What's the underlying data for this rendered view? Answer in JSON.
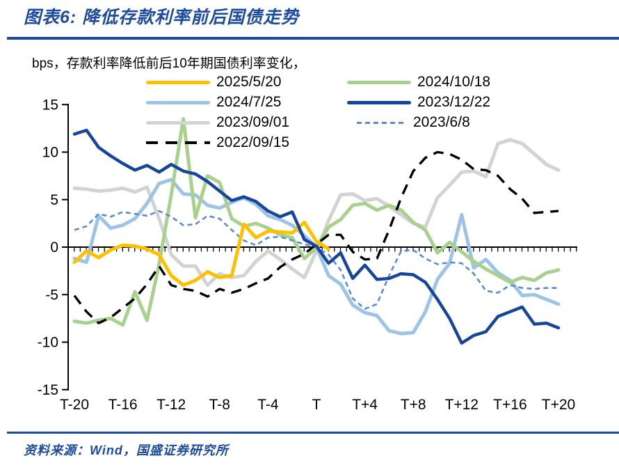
{
  "report": {
    "title": "图表6:  降低存款利率前后国债走势",
    "source": "资料来源：Wind，国盛证券研究所"
  },
  "accent": {
    "navy": "#1B4A9E",
    "axis": "#000000"
  },
  "chart_data": {
    "type": "line",
    "title": "bps，存款利率降低前后10年期国债利率变化，",
    "x_categories": [
      "T-20",
      "T-19",
      "T-18",
      "T-17",
      "T-16",
      "T-15",
      "T-14",
      "T-13",
      "T-12",
      "T-11",
      "T-10",
      "T-9",
      "T-8",
      "T-7",
      "T-6",
      "T-5",
      "T-4",
      "T-3",
      "T-2",
      "T-1",
      "T",
      "T+1",
      "T+2",
      "T+3",
      "T+4",
      "T+5",
      "T+6",
      "T+7",
      "T+8",
      "T+9",
      "T+10",
      "T+11",
      "T+12",
      "T+13",
      "T+14",
      "T+15",
      "T+16",
      "T+17",
      "T+18",
      "T+19",
      "T+20"
    ],
    "x_tick_labels": [
      "T-20",
      "T-16",
      "T-12",
      "T-8",
      "T-4",
      "T",
      "T+4",
      "T+8",
      "T+12",
      "T+16",
      "T+20"
    ],
    "y_ticks": [
      15,
      10,
      5,
      0,
      -5,
      -10,
      -15
    ],
    "ylim": [
      -15,
      15
    ],
    "xlabel": "",
    "ylabel": "bps",
    "grid": false,
    "legend_position": "top-center-two-columns",
    "series": [
      {
        "name": "2025/5/20",
        "color": "#FFC000",
        "style": "solid",
        "values": [
          -1.6,
          -0.4,
          -1.1,
          -0.3,
          0.2,
          0.1,
          -0.2,
          -0.8,
          -3.0,
          -4.0,
          -3.5,
          -2.6,
          -3.2,
          -3.0,
          2.4,
          1.0,
          1.7,
          1.6,
          1.5,
          2.6,
          0.6,
          -0.2,
          null,
          null,
          null,
          null,
          null,
          null,
          null,
          null,
          null,
          null,
          null,
          null,
          null,
          null,
          null,
          null,
          null,
          null,
          null
        ]
      },
      {
        "name": "2024/10/18",
        "color": "#A9D18E",
        "style": "solid",
        "values": [
          -7.8,
          -8.0,
          -7.7,
          -7.5,
          -8.2,
          -4.7,
          -7.7,
          -1.8,
          5.5,
          13.5,
          3.1,
          7.5,
          6.8,
          3.0,
          2.2,
          2.5,
          2.0,
          1.3,
          1.0,
          -1.2,
          -0.1,
          2.1,
          2.9,
          4.4,
          4.6,
          3.9,
          4.4,
          3.9,
          2.6,
          1.8,
          -0.6,
          0.5,
          -0.5,
          -1.5,
          -2.3,
          -3.0,
          -3.7,
          -3.2,
          -3.5,
          -2.7,
          -2.4
        ]
      },
      {
        "name": "2024/7/25",
        "color": "#9DC3E6",
        "style": "solid",
        "values": [
          -1.2,
          -1.6,
          3.3,
          2.0,
          2.3,
          3.0,
          4.6,
          6.7,
          7.1,
          5.6,
          5.5,
          4.4,
          4.1,
          4.7,
          5.2,
          4.5,
          3.3,
          2.9,
          2.3,
          1.2,
          0.0,
          -3.0,
          -3.9,
          -6.1,
          -6.9,
          -7.2,
          -8.8,
          -9.1,
          -9.0,
          -6.8,
          -3.4,
          -1.7,
          3.4,
          -2.2,
          -1.3,
          -2.7,
          -3.5,
          -5.1,
          -5.0,
          -5.5,
          -6.0
        ]
      },
      {
        "name": "2023/12/22",
        "color": "#16459C",
        "style": "solid",
        "values": [
          11.9,
          12.3,
          10.5,
          9.6,
          8.8,
          8.1,
          8.6,
          7.9,
          8.7,
          8.0,
          7.7,
          6.9,
          5.9,
          4.9,
          5.3,
          4.8,
          3.8,
          3.2,
          3.7,
          0.8,
          0.1,
          -1.7,
          -0.6,
          -3.3,
          -1.9,
          -3.4,
          -3.3,
          -2.8,
          -2.9,
          -3.7,
          -5.5,
          -7.5,
          -10.1,
          -9.3,
          -8.9,
          -7.3,
          -6.8,
          -6.3,
          -8.1,
          -8.0,
          -8.5
        ]
      },
      {
        "name": "2023/09/01",
        "color": "#D3D3D3",
        "style": "solid",
        "values": [
          6.2,
          6.1,
          5.9,
          6.0,
          6.2,
          5.8,
          6.3,
          3.0,
          -0.8,
          -2.0,
          -2.0,
          -4.0,
          -2.8,
          -3.2,
          -3.0,
          -1.5,
          -0.4,
          -1.3,
          -2.3,
          -3.2,
          -0.4,
          2.8,
          5.5,
          5.6,
          4.9,
          5.1,
          4.3,
          3.4,
          2.5,
          2.1,
          5.2,
          6.5,
          7.9,
          8.0,
          7.4,
          10.9,
          11.3,
          10.9,
          9.8,
          8.7,
          8.1
        ]
      },
      {
        "name": "2023/6/8",
        "color": "#5B8BD0",
        "style": "dashed",
        "values": [
          1.8,
          2.2,
          3.5,
          3.2,
          3.7,
          3.5,
          3.3,
          3.8,
          3.2,
          2.3,
          2.4,
          3.3,
          3.0,
          1.8,
          0.7,
          0.2,
          1.0,
          1.1,
          0.7,
          0.3,
          0.0,
          -0.8,
          -2.4,
          -5.4,
          -6.5,
          -6.0,
          -3.0,
          -0.4,
          -0.3,
          -1.2,
          -1.8,
          -1.6,
          -1.7,
          -2.8,
          -4.6,
          -4.8,
          -4.0,
          -4.3,
          -4.4,
          -4.3,
          -4.3
        ]
      },
      {
        "name": "2022/09/15",
        "color": "#000000",
        "style": "long-dash",
        "values": [
          -5.1,
          -6.8,
          -8.0,
          -7.4,
          -6.4,
          -5.4,
          -3.9,
          -2.0,
          -4.0,
          -4.4,
          -4.6,
          -5.2,
          -4.4,
          -4.8,
          -4.4,
          -3.8,
          -3.3,
          -2.1,
          -1.3,
          -0.7,
          0.3,
          1.3,
          1.3,
          -0.5,
          -1.3,
          -1.2,
          1.8,
          5.2,
          8.0,
          9.4,
          10.0,
          9.8,
          9.2,
          8.2,
          8.1,
          7.5,
          6.1,
          5.1,
          3.6,
          3.7,
          3.8
        ]
      }
    ]
  }
}
